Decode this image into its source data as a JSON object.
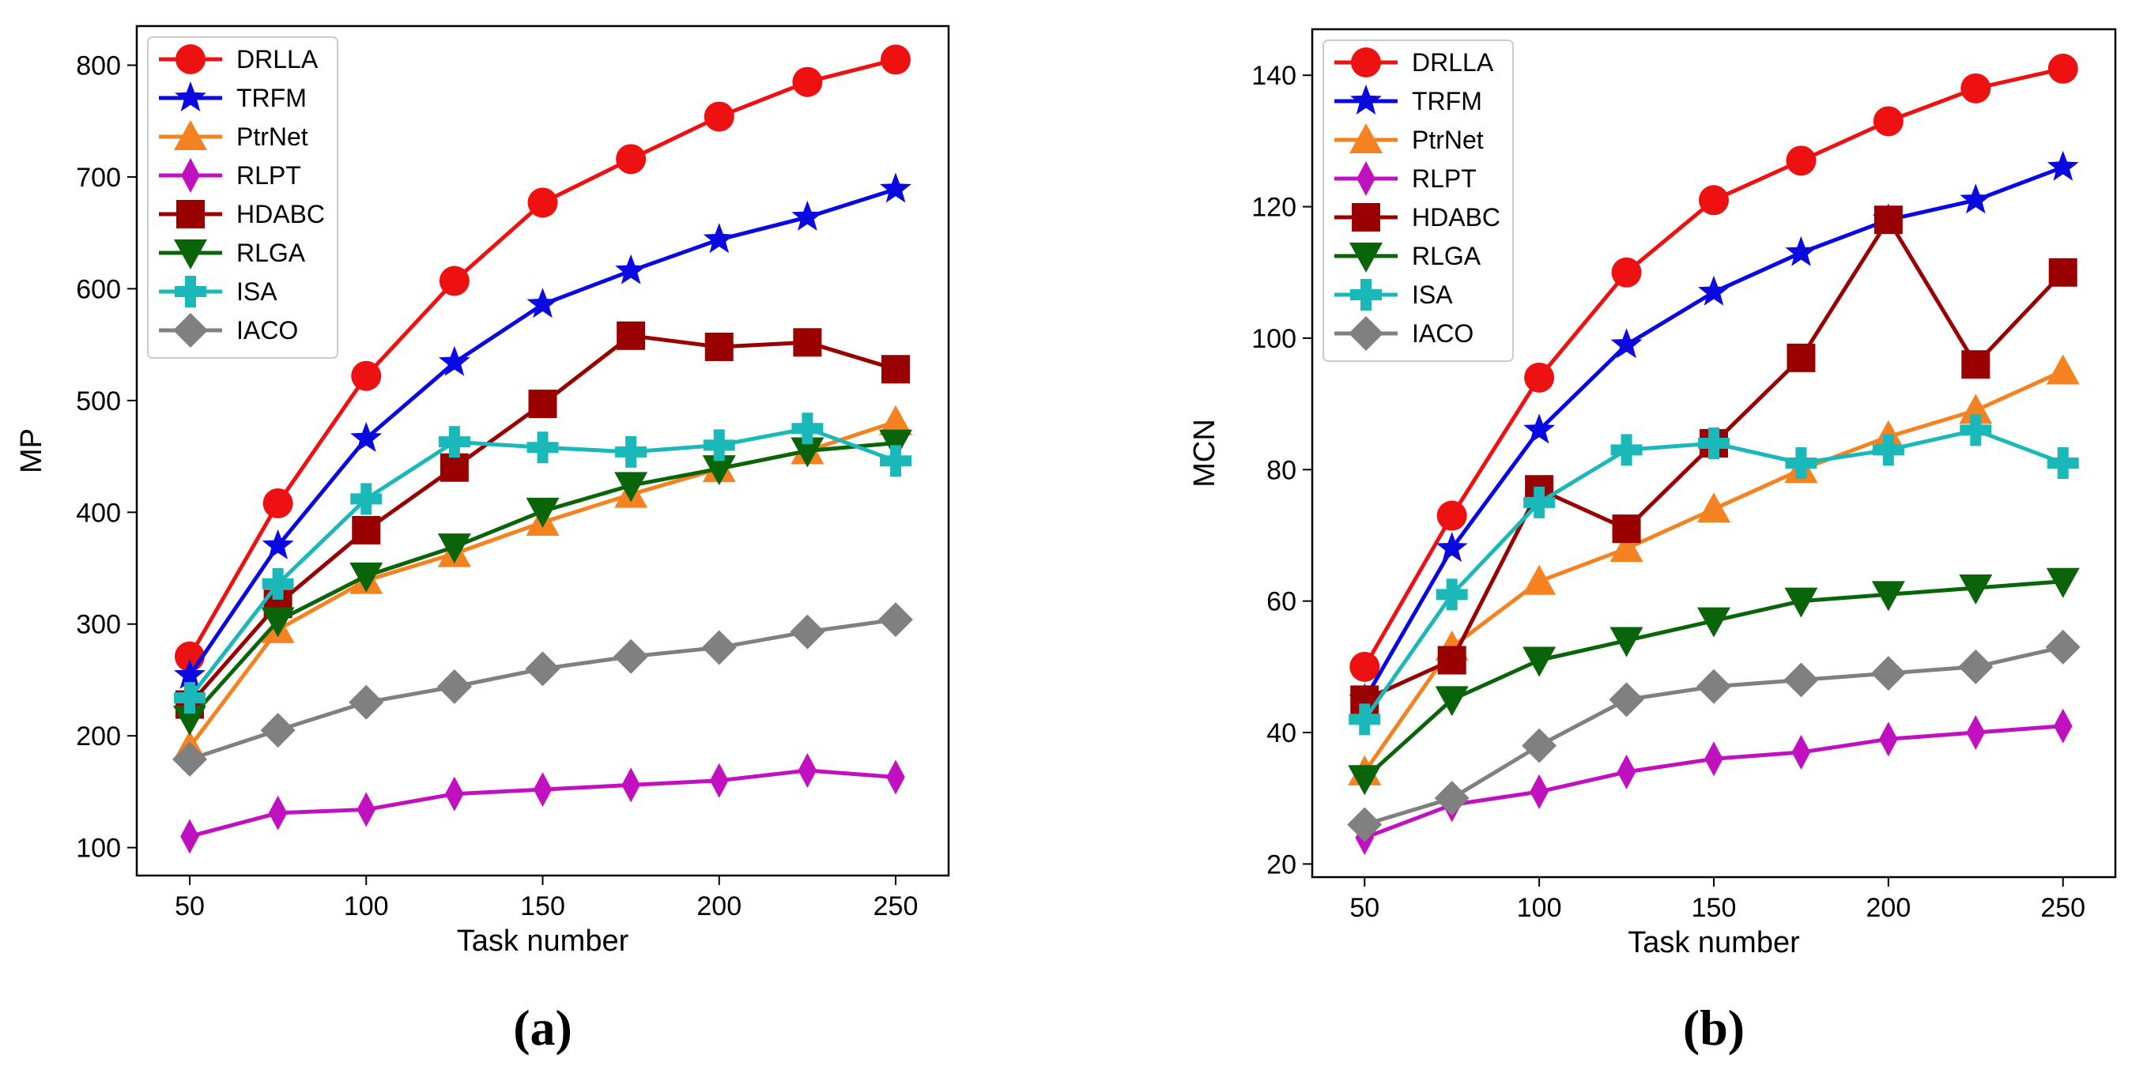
{
  "chart_data": [
    {
      "type": "line",
      "caption": "(a)",
      "xlabel": "Task number",
      "ylabel": "MP",
      "x": [
        50,
        75,
        100,
        125,
        150,
        175,
        200,
        225,
        250
      ],
      "xlim": [
        35,
        265
      ],
      "ylim": [
        75,
        835
      ],
      "xticks": [
        50,
        100,
        150,
        200,
        250
      ],
      "yticks": [
        100,
        200,
        300,
        400,
        500,
        600,
        700,
        800
      ],
      "legend_position": "top-left",
      "series": [
        {
          "name": "DRLLA",
          "color": "#ee1111",
          "marker": "circle",
          "values": [
            271,
            408,
            522,
            607,
            677,
            716,
            754,
            785,
            805
          ]
        },
        {
          "name": "TRFM",
          "color": "#0a0ae0",
          "marker": "star",
          "values": [
            254,
            370,
            466,
            534,
            586,
            616,
            644,
            664,
            689
          ]
        },
        {
          "name": "PtrNet",
          "color": "#f58220",
          "marker": "triangle-up",
          "values": [
            190,
            295,
            339,
            363,
            391,
            416,
            439,
            455,
            481
          ]
        },
        {
          "name": "RLPT",
          "color": "#c010c0",
          "marker": "thin-diamond",
          "values": [
            110,
            131,
            134,
            148,
            152,
            156,
            160,
            169,
            163
          ]
        },
        {
          "name": "HDABC",
          "color": "#990000",
          "marker": "square",
          "values": [
            228,
            318,
            384,
            440,
            497,
            558,
            548,
            552,
            528
          ]
        },
        {
          "name": "RLGA",
          "color": "#0a640a",
          "marker": "triangle-down",
          "values": [
            215,
            303,
            343,
            369,
            401,
            424,
            439,
            455,
            462
          ]
        },
        {
          "name": "ISA",
          "color": "#1ab8b8",
          "marker": "plus",
          "values": [
            234,
            336,
            412,
            463,
            458,
            454,
            460,
            475,
            446
          ]
        },
        {
          "name": "IACO",
          "color": "#808080",
          "marker": "diamond",
          "values": [
            179,
            205,
            230,
            244,
            260,
            271,
            279,
            293,
            304
          ]
        }
      ]
    },
    {
      "type": "line",
      "caption": "(b)",
      "xlabel": "Task number",
      "ylabel": "MCN",
      "x": [
        50,
        75,
        100,
        125,
        150,
        175,
        200,
        225,
        250
      ],
      "xlim": [
        35,
        265
      ],
      "ylim": [
        18,
        147
      ],
      "xticks": [
        50,
        100,
        150,
        200,
        250
      ],
      "yticks": [
        20,
        40,
        60,
        80,
        100,
        120,
        140
      ],
      "legend_position": "top-left",
      "series": [
        {
          "name": "DRLLA",
          "color": "#ee1111",
          "marker": "circle",
          "values": [
            50,
            73,
            94,
            110,
            121,
            127,
            133,
            138,
            141
          ]
        },
        {
          "name": "TRFM",
          "color": "#0a0ae0",
          "marker": "star",
          "values": [
            45,
            68,
            86,
            99,
            107,
            113,
            118,
            121,
            126
          ]
        },
        {
          "name": "PtrNet",
          "color": "#f58220",
          "marker": "triangle-up",
          "values": [
            34,
            53,
            63,
            68,
            74,
            80,
            85,
            89,
            95
          ]
        },
        {
          "name": "RLPT",
          "color": "#c010c0",
          "marker": "thin-diamond",
          "values": [
            24,
            29,
            31,
            34,
            36,
            37,
            39,
            40,
            41
          ]
        },
        {
          "name": "HDABC",
          "color": "#990000",
          "marker": "square",
          "values": [
            45,
            51,
            77,
            71,
            84,
            97,
            118,
            96,
            110
          ]
        },
        {
          "name": "RLGA",
          "color": "#0a640a",
          "marker": "triangle-down",
          "values": [
            33,
            45,
            51,
            54,
            57,
            60,
            61,
            62,
            63
          ]
        },
        {
          "name": "ISA",
          "color": "#1ab8b8",
          "marker": "plus",
          "values": [
            42,
            61,
            75,
            83,
            84,
            81,
            83,
            86,
            81
          ]
        },
        {
          "name": "IACO",
          "color": "#808080",
          "marker": "diamond",
          "values": [
            26,
            30,
            38,
            45,
            47,
            48,
            49,
            50,
            53
          ]
        }
      ]
    }
  ]
}
